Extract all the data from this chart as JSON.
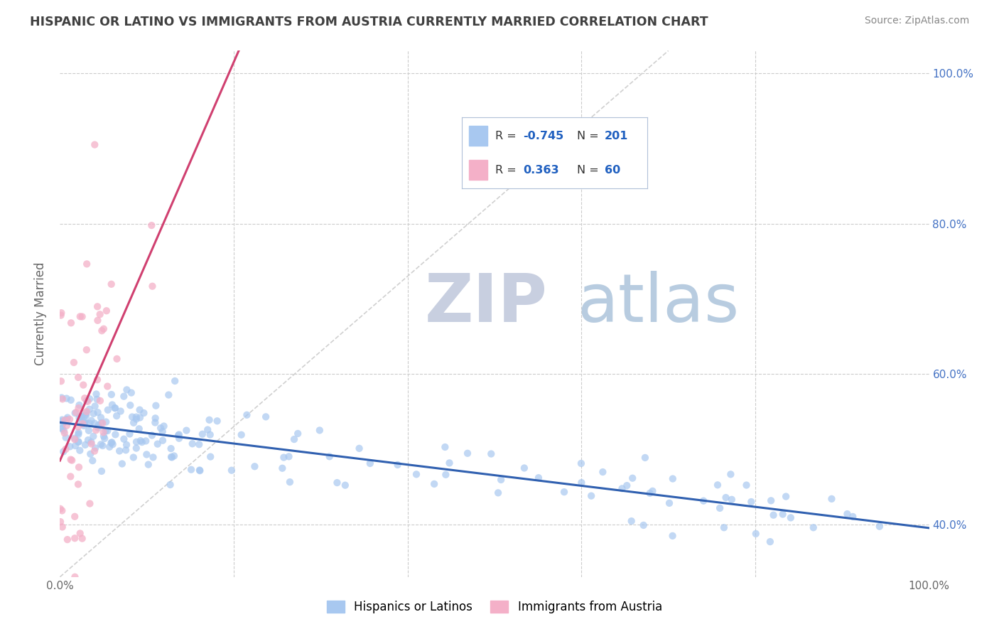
{
  "title": "HISPANIC OR LATINO VS IMMIGRANTS FROM AUSTRIA CURRENTLY MARRIED CORRELATION CHART",
  "source_text": "Source: ZipAtlas.com",
  "ylabel": "Currently Married",
  "watermark_zip": "ZIP",
  "watermark_atlas": "atlas",
  "xlim": [
    0.0,
    1.0
  ],
  "ylim": [
    0.33,
    1.03
  ],
  "y_ticks": [
    0.4,
    0.6,
    0.8,
    1.0
  ],
  "y_tick_labels": [
    "40.0%",
    "60.0%",
    "80.0%",
    "100.0%"
  ],
  "background_color": "#ffffff",
  "grid_color": "#cccccc",
  "blue_scatter_color": "#a8c8f0",
  "pink_scatter_color": "#f4b0c8",
  "blue_line_color": "#3060b0",
  "pink_line_color": "#d04070",
  "diagonal_line_color": "#d0d0d0",
  "title_color": "#404040",
  "source_color": "#888888",
  "watermark_zip_color": "#c8cfe0",
  "watermark_atlas_color": "#b8cce0",
  "right_tick_color": "#4472c4",
  "R_color": "#2060c0",
  "legend_box_color": "#e8eff8",
  "legend_border_color": "#b0c0d8",
  "blue_legend_patch": "#a8c8f0",
  "pink_legend_patch": "#f4b0c8",
  "bottom_legend_blue": "#a8c8f0",
  "bottom_legend_pink": "#f4b0c8"
}
